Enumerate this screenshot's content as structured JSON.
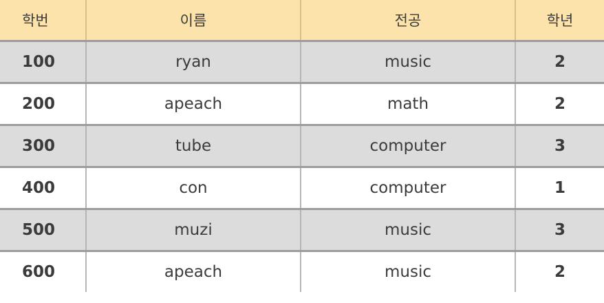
{
  "table": {
    "headers": [
      "학번",
      "이름",
      "전공",
      "학년"
    ],
    "rows": [
      {
        "id": "100",
        "name": "ryan",
        "major": "music",
        "year": "2"
      },
      {
        "id": "200",
        "name": "apeach",
        "major": "math",
        "year": "2"
      },
      {
        "id": "300",
        "name": "tube",
        "major": "computer",
        "year": "3"
      },
      {
        "id": "400",
        "name": "con",
        "major": "computer",
        "year": "1"
      },
      {
        "id": "500",
        "name": "muzi",
        "major": "music",
        "year": "3"
      },
      {
        "id": "600",
        "name": "apeach",
        "major": "music",
        "year": "2"
      }
    ]
  },
  "colors": {
    "header_bg": "#fce3ab",
    "shaded_row_bg": "#dcdcdc",
    "plain_row_bg": "#ffffff",
    "text": "#3b3b3b"
  }
}
